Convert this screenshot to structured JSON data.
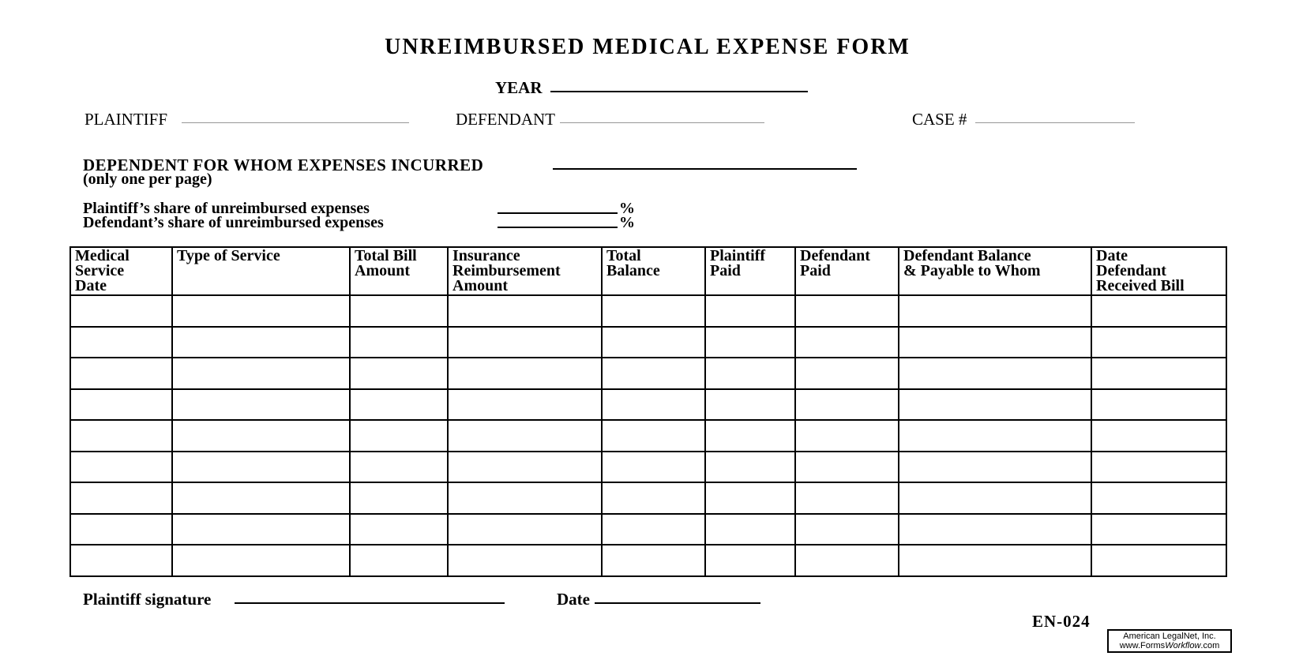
{
  "form": {
    "title": "UNREIMBURSED MEDICAL EXPENSE FORM",
    "year_label": "YEAR",
    "plaintiff_label": "PLAINTIFF",
    "defendant_label": "DEFENDANT",
    "case_label": "CASE #",
    "dependent_label": "DEPENDENT FOR WHOM EXPENSES INCURRED",
    "dependent_note": "(only one per page)",
    "plaintiff_share_label": "Plaintiff’s share of unreimbursed expenses",
    "defendant_share_label": "Defendant’s share of unreimbursed expenses",
    "percent_sign": "%",
    "signature_label": "Plaintiff signature",
    "date_label": "Date",
    "form_number": "EN-024"
  },
  "table": {
    "row_count": 9,
    "headers": [
      "Medical\nService\nDate",
      "Type of Service",
      "Total Bill\nAmount",
      "Insurance\nReimbursement\nAmount",
      "Total\nBalance",
      "Plaintiff\nPaid",
      "Defendant\nPaid",
      "Defendant Balance\n& Payable to Whom",
      "Date\nDefendant\nReceived Bill"
    ]
  },
  "footer_logo": {
    "line1": "American LegalNet, Inc.",
    "line2_prefix": "www.Forms",
    "line2_italic": "Workflow",
    "line2_suffix": ".com"
  },
  "colors": {
    "ink": "#000000",
    "light_rule": "#979797",
    "paper": "#ffffff"
  }
}
